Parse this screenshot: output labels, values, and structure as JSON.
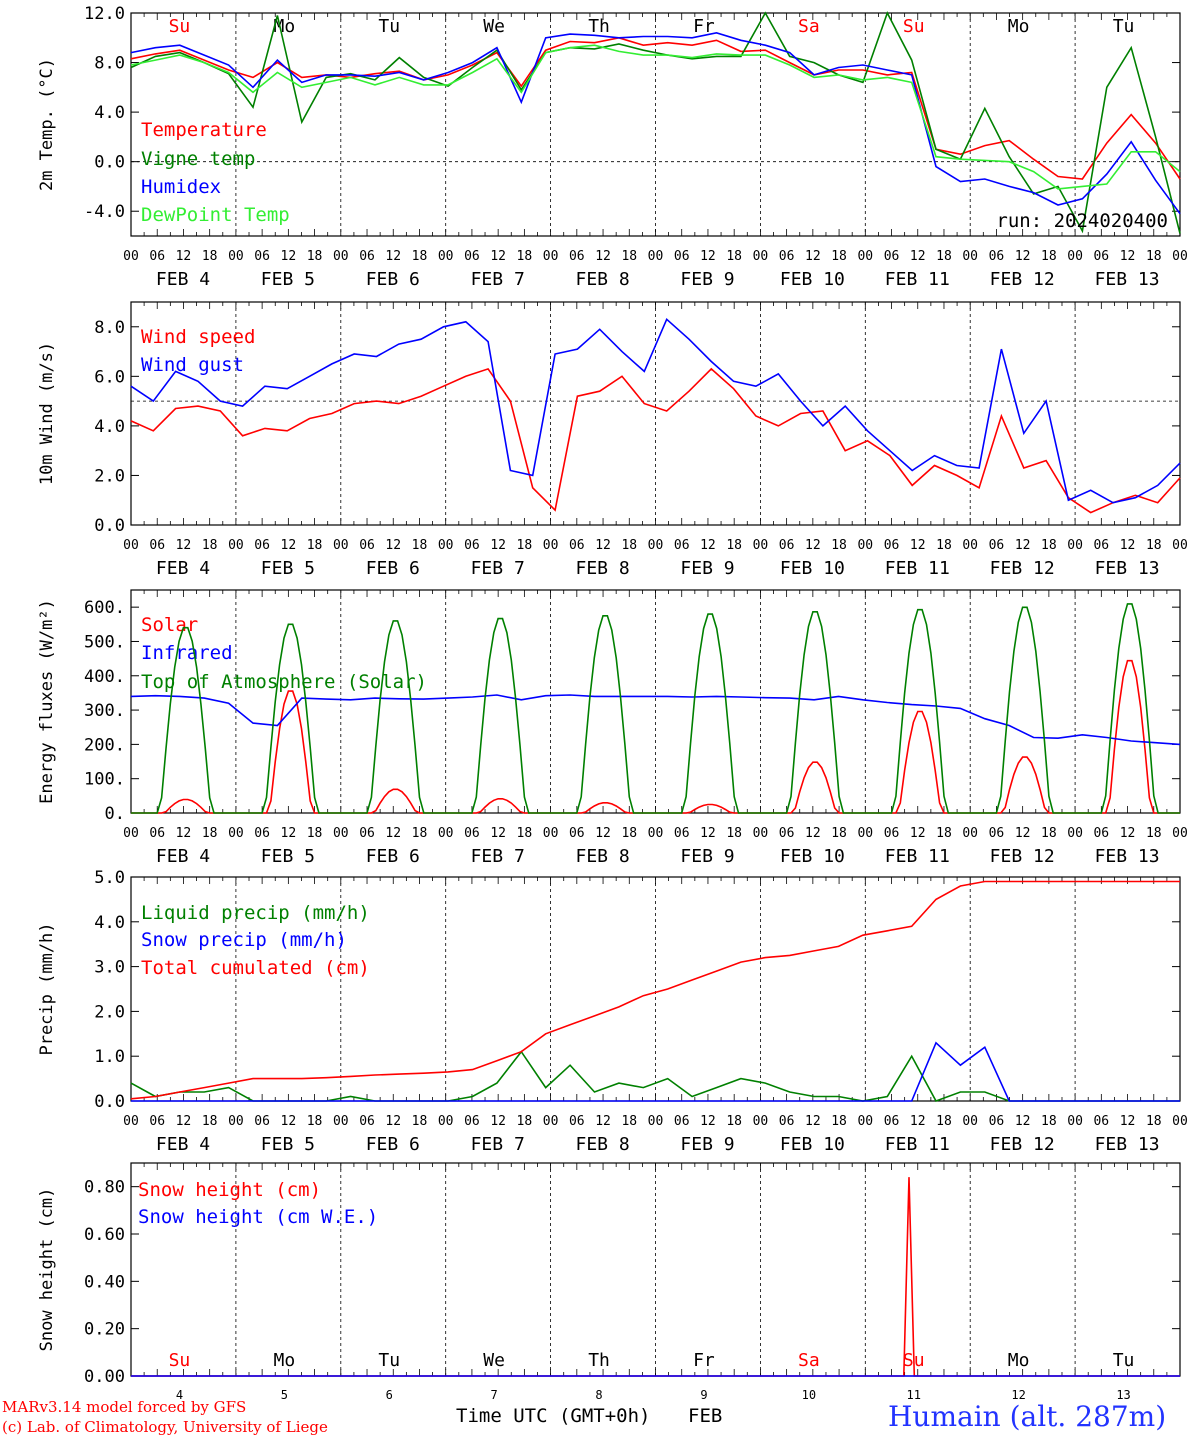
{
  "days": [
    "FEB  4",
    "FEB  5",
    "FEB  6",
    "FEB  7",
    "FEB  8",
    "FEB  9",
    "FEB 10",
    "FEB 11",
    "FEB 12",
    "FEB 13"
  ],
  "weekdays": [
    "Su",
    "Mo",
    "Tu",
    "We",
    "Th",
    "Fr",
    "Sa",
    "Su",
    "Mo",
    "Tu"
  ],
  "day_numbers": [
    "4",
    "5",
    "6",
    "7",
    "8",
    "9",
    "10",
    "11",
    "12",
    "13"
  ],
  "hour_labels": [
    "00",
    "06",
    "12",
    "18"
  ],
  "end_hour_label": "00",
  "colors": {
    "red": "#ff0000",
    "green": "#008000",
    "blue": "#0000ff",
    "lightgreen": "#33ee33",
    "grey": "#555555"
  },
  "footer": {
    "model": "MARv3.14 model forced by GFS",
    "lab": "(c) Lab. of Climatology, University of Liege",
    "xlabel": "Time UTC (GMT+0h)",
    "month": "FEB",
    "station": "Humain (alt. 287m)"
  },
  "chart_data": [
    {
      "type": "line",
      "ylabel": "2m Temp. (°C)",
      "ylim": [
        -6,
        12
      ],
      "yticks": [
        "12.0",
        "8.0",
        "4.0",
        "0.0",
        "-4.0"
      ],
      "ytick_values": [
        12,
        8,
        4,
        0,
        -4
      ],
      "ref_line": 0,
      "run_label": "run: 2024020400",
      "x_hours_step": 6,
      "series": [
        {
          "name": "Temperature",
          "color": "red",
          "values": [
            8.3,
            8.7,
            9.0,
            8.2,
            7.4,
            6.8,
            8.0,
            6.8,
            7.0,
            6.8,
            7.1,
            7.3,
            6.6,
            7.0,
            7.8,
            8.8,
            6.1,
            9.0,
            9.7,
            9.6,
            10.0,
            9.4,
            9.6,
            9.4,
            9.8,
            8.9,
            9.0,
            8.0,
            7.0,
            7.4,
            7.4,
            7.0,
            7.2,
            1.0,
            0.6,
            1.3,
            1.7,
            0.2,
            -1.2,
            -1.4,
            1.5,
            3.8,
            1.5,
            -1.4
          ]
        },
        {
          "name": "Vigne temp",
          "color": "green",
          "values": [
            7.6,
            8.5,
            8.8,
            8.0,
            7.1,
            4.4,
            11.8,
            3.2,
            6.8,
            7.1,
            6.6,
            8.4,
            6.8,
            6.1,
            7.6,
            9.0,
            5.8,
            8.8,
            9.2,
            9.1,
            9.5,
            9.0,
            8.6,
            8.3,
            8.5,
            8.5,
            12.0,
            8.5,
            8.0,
            7.0,
            6.4,
            12.5,
            8.2,
            1.0,
            0.2,
            4.3,
            0.4,
            -2.6,
            -2.0,
            -5.6,
            6.0,
            9.2,
            2.0,
            -5.8
          ]
        },
        {
          "name": "Humidex",
          "color": "blue",
          "values": [
            8.8,
            9.2,
            9.4,
            8.6,
            7.8,
            6.0,
            8.2,
            6.4,
            7.0,
            7.0,
            6.9,
            7.2,
            6.6,
            7.2,
            8.0,
            9.2,
            4.8,
            10.0,
            10.3,
            10.2,
            10.0,
            10.1,
            10.1,
            10.0,
            10.4,
            9.8,
            9.4,
            8.8,
            7.0,
            7.6,
            7.8,
            7.4,
            7.0,
            -0.4,
            -1.6,
            -1.4,
            -2.0,
            -2.5,
            -3.5,
            -3.0,
            -1.0,
            1.6,
            -1.5,
            -4.2
          ]
        },
        {
          "name": "DewPoint Temp",
          "color": "lightgreen",
          "values": [
            7.8,
            8.2,
            8.6,
            8.0,
            7.2,
            5.6,
            7.2,
            6.0,
            6.4,
            6.8,
            6.2,
            6.8,
            6.2,
            6.2,
            7.2,
            8.3,
            5.6,
            8.8,
            9.2,
            9.4,
            8.9,
            8.6,
            8.6,
            8.4,
            8.7,
            8.6,
            8.6,
            7.8,
            6.8,
            7.0,
            6.6,
            6.8,
            6.4,
            0.4,
            0.2,
            0.1,
            0.0,
            -0.8,
            -2.2,
            -2.0,
            -1.8,
            0.8,
            0.8,
            -0.8
          ]
        }
      ]
    },
    {
      "type": "line",
      "ylabel": "10m Wind (m/s)",
      "ylim": [
        0,
        9
      ],
      "yticks": [
        "8.0",
        "6.0",
        "4.0",
        "2.0",
        "0.0"
      ],
      "ytick_values": [
        8,
        6,
        4,
        2,
        0
      ],
      "ref_line": 5,
      "x_hours_step": 6,
      "series": [
        {
          "name": "Wind speed",
          "color": "red",
          "values": [
            4.2,
            3.8,
            4.7,
            4.8,
            4.6,
            3.6,
            3.9,
            3.8,
            4.3,
            4.5,
            4.9,
            5.0,
            4.9,
            5.2,
            5.6,
            6.0,
            6.3,
            5.0,
            1.5,
            0.6,
            5.2,
            5.4,
            6.0,
            4.9,
            4.6,
            5.4,
            6.3,
            5.5,
            4.4,
            4.0,
            4.5,
            4.6,
            3.0,
            3.4,
            2.8,
            1.6,
            2.4,
            2.0,
            1.5,
            4.4,
            2.3,
            2.6,
            1.1,
            0.5,
            0.9,
            1.2,
            0.9,
            1.9
          ]
        },
        {
          "name": "Wind gust",
          "color": "blue",
          "values": [
            5.6,
            5.0,
            6.2,
            5.8,
            5.0,
            4.8,
            5.6,
            5.5,
            6.0,
            6.5,
            6.9,
            6.8,
            7.3,
            7.5,
            8.0,
            8.2,
            7.4,
            2.2,
            2.0,
            6.9,
            7.1,
            7.9,
            7.0,
            6.2,
            8.3,
            7.5,
            6.6,
            5.8,
            5.6,
            6.1,
            5.0,
            4.0,
            4.8,
            3.8,
            3.0,
            2.2,
            2.8,
            2.4,
            2.3,
            7.1,
            3.7,
            5.0,
            1.0,
            1.4,
            0.9,
            1.1,
            1.6,
            2.5
          ]
        }
      ]
    },
    {
      "type": "line",
      "ylabel": "Energy fluxes (W/m²)",
      "ylim": [
        0,
        650
      ],
      "yticks": [
        "600.",
        "500.",
        "400.",
        "300.",
        "200.",
        "100.",
        "0."
      ],
      "ytick_values": [
        600,
        500,
        400,
        300,
        200,
        100,
        0
      ],
      "x_hours_step": 6,
      "series": [
        {
          "name": "Solar",
          "color": "red",
          "daily_peak": [
            40,
            360,
            70,
            42,
            30,
            25,
            150,
            300,
            165,
            450
          ]
        },
        {
          "name": "Infrared",
          "color": "blue",
          "values": [
            340,
            342,
            340,
            335,
            320,
            262,
            255,
            335,
            332,
            330,
            335,
            333,
            332,
            335,
            338,
            344,
            330,
            342,
            344,
            340,
            340,
            340,
            340,
            338,
            340,
            338,
            336,
            335,
            330,
            340,
            330,
            322,
            316,
            312,
            305,
            275,
            255,
            220,
            218,
            228,
            220,
            210,
            205,
            200
          ]
        },
        {
          "name": "Top of Atmosphere (Solar)",
          "color": "green",
          "daily_peak": [
            545,
            555,
            565,
            572,
            580,
            585,
            592,
            598,
            605,
            615
          ]
        }
      ]
    },
    {
      "type": "line",
      "ylabel": "Precip (mm/h)",
      "ylim": [
        0,
        5
      ],
      "yticks": [
        "5.0",
        "4.0",
        "3.0",
        "2.0",
        "1.0",
        "0.0"
      ],
      "ytick_values": [
        5,
        4,
        3,
        2,
        1,
        0
      ],
      "x_hours_step": 6,
      "series": [
        {
          "name": "Liquid precip (mm/h)",
          "color": "green",
          "values": [
            0.4,
            0.1,
            0.2,
            0.2,
            0.3,
            0.0,
            0.0,
            0.0,
            0.0,
            0.1,
            0.0,
            0.0,
            0.0,
            0.0,
            0.1,
            0.4,
            1.1,
            0.3,
            0.8,
            0.2,
            0.4,
            0.3,
            0.5,
            0.1,
            0.3,
            0.5,
            0.4,
            0.2,
            0.1,
            0.1,
            0.0,
            0.1,
            1.0,
            0.0,
            0.2,
            0.2,
            0.0,
            0.0,
            0.0,
            0.0,
            0.0,
            0.0,
            0.0,
            0.0
          ]
        },
        {
          "name": "Snow precip (mm/h)",
          "color": "blue",
          "values": [
            0,
            0,
            0,
            0,
            0,
            0,
            0,
            0,
            0,
            0,
            0,
            0,
            0,
            0,
            0,
            0,
            0,
            0,
            0,
            0,
            0,
            0,
            0,
            0,
            0,
            0,
            0,
            0,
            0,
            0,
            0,
            0,
            0,
            1.3,
            0.8,
            1.2,
            0.0,
            0,
            0,
            0,
            0,
            0,
            0,
            0
          ]
        },
        {
          "name": "Total cumulated (cm)",
          "color": "red",
          "values": [
            0.05,
            0.1,
            0.2,
            0.3,
            0.4,
            0.5,
            0.5,
            0.5,
            0.52,
            0.55,
            0.58,
            0.6,
            0.62,
            0.65,
            0.7,
            0.9,
            1.1,
            1.5,
            1.7,
            1.9,
            2.1,
            2.35,
            2.5,
            2.7,
            2.9,
            3.1,
            3.2,
            3.25,
            3.35,
            3.45,
            3.7,
            3.8,
            3.9,
            4.5,
            4.8,
            4.9,
            4.9,
            4.9,
            4.9,
            4.9,
            4.9,
            4.9,
            4.9,
            4.9
          ]
        }
      ]
    },
    {
      "type": "line",
      "ylabel": "Snow height (cm)",
      "ylim": [
        0,
        0.9
      ],
      "yticks": [
        "0.80",
        "0.60",
        "0.40",
        "0.20",
        "0.00"
      ],
      "ytick_values": [
        0.8,
        0.6,
        0.4,
        0.2,
        0
      ],
      "x_hours_step": 6,
      "series": [
        {
          "name": "Snow height (cm)",
          "color": "red",
          "spike_hour": 178,
          "spike_value": 0.84
        },
        {
          "name": "Snow height (cm W.E.)",
          "color": "blue",
          "constant": 0
        }
      ]
    }
  ]
}
